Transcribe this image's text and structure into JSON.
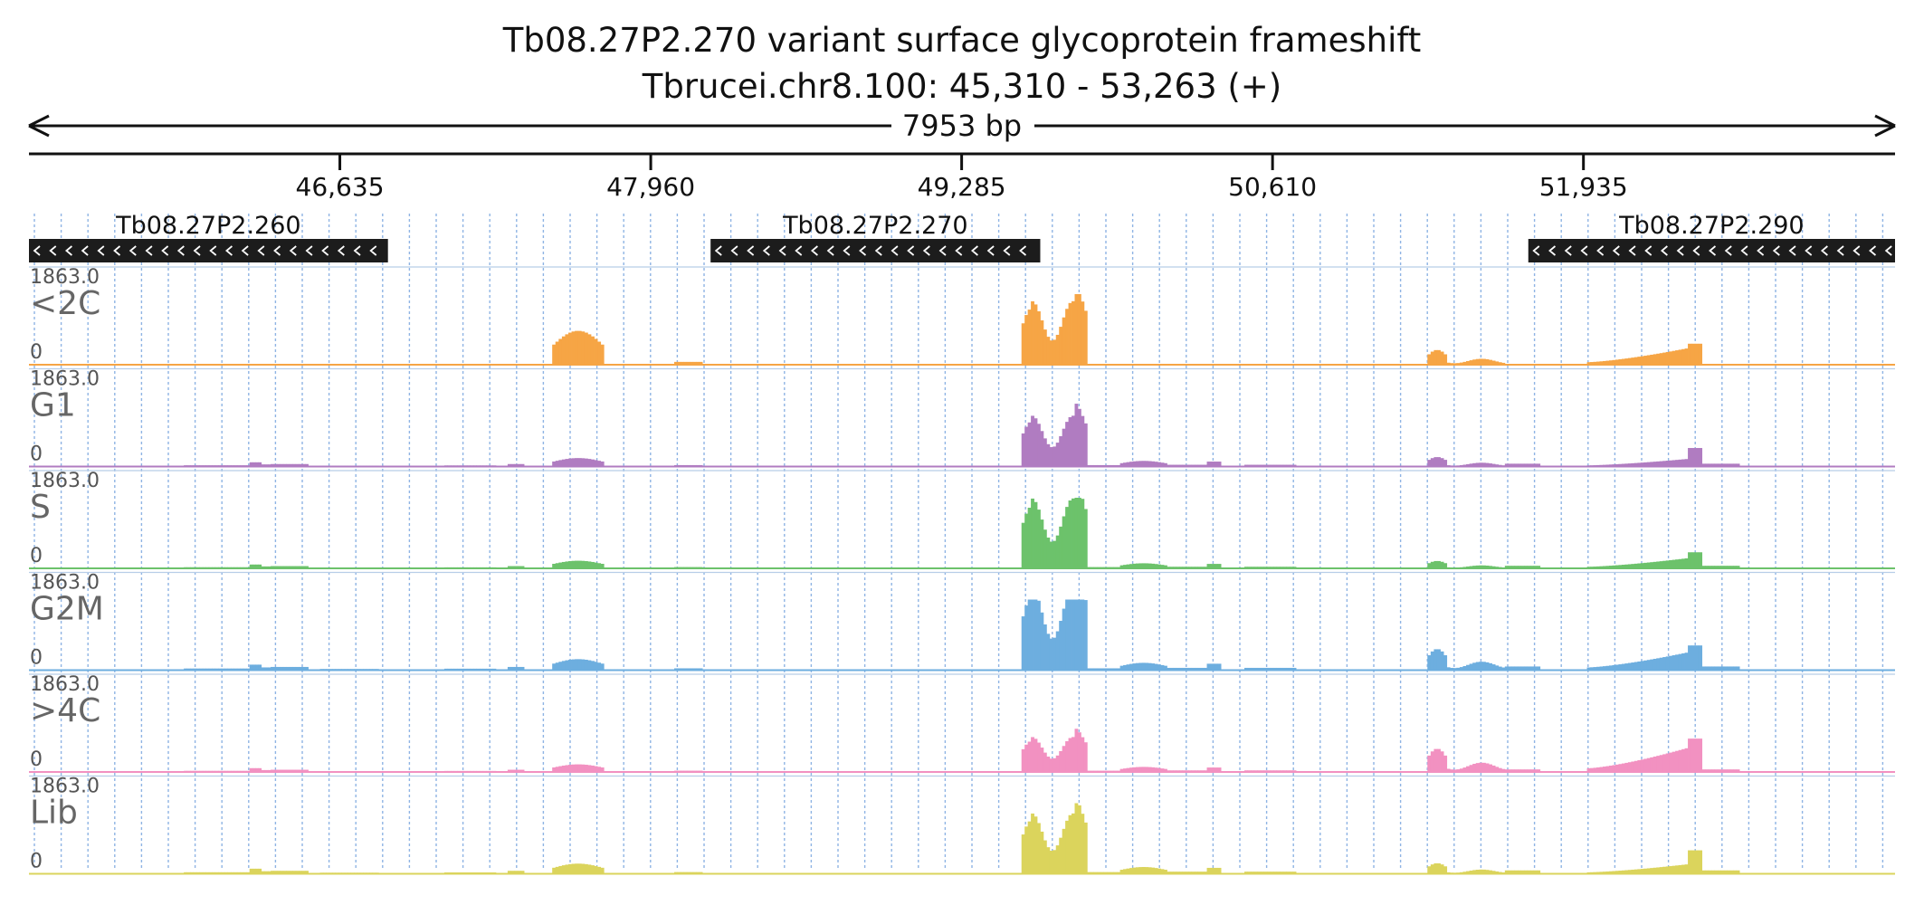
{
  "header": {
    "title": "Tb08.27P2.270  variant surface glycoprotein  frameshift",
    "locus": "Tbrucei.chr8.100: 45,310 - 53,263 (+)",
    "span_label": "7953 bp"
  },
  "chart_data": {
    "type": "area",
    "region": {
      "chrom": "Tbrucei.chr8.100",
      "start": 45310,
      "end": 53263,
      "strand": "+"
    },
    "x_ticks": [
      {
        "pos": 46635,
        "label": "46,635"
      },
      {
        "pos": 47960,
        "label": "47,960"
      },
      {
        "pos": 49285,
        "label": "49,285"
      },
      {
        "pos": 50610,
        "label": "50,610"
      },
      {
        "pos": 51935,
        "label": "51,935"
      }
    ],
    "genes": [
      {
        "name": "Tb08.27P2.260",
        "start": 45310,
        "end": 46840,
        "strand": "-"
      },
      {
        "name": "Tb08.27P2.270",
        "start": 48215,
        "end": 49620,
        "strand": "-"
      },
      {
        "name": "Tb08.27P2.290",
        "start": 51700,
        "end": 53263,
        "strand": "-"
      }
    ],
    "track_scale": {
      "max_label": "1863.0",
      "min_label": "0",
      "max": 1863.0
    },
    "segments": [
      {
        "start": 45310,
        "end": 45520,
        "w": 0.4
      },
      {
        "start": 45520,
        "end": 45750,
        "w": 0.2
      },
      {
        "start": 45800,
        "end": 45970,
        "w": 0.7
      },
      {
        "start": 45970,
        "end": 46250,
        "w": 1.8
      },
      {
        "start": 46250,
        "end": 46300,
        "w": 6
      },
      {
        "start": 46300,
        "end": 46300,
        "w": 0
      },
      {
        "start": 46300,
        "end": 46370,
        "w": 3
      },
      {
        "start": 46340,
        "end": 46500,
        "w": 3.5
      },
      {
        "start": 46550,
        "end": 46800,
        "w": 1.3
      },
      {
        "start": 46360,
        "end": 46380,
        "w": 0
      },
      {
        "start": 46290,
        "end": 46320,
        "w": 0
      },
      {
        "start": 46580,
        "end": 46600,
        "w": 0
      },
      {
        "start": 46650,
        "end": 46700,
        "w": 0
      },
      {
        "start": 46750,
        "end": 46800,
        "w": 0
      },
      {
        "start": 46800,
        "end": 46900,
        "w": 0
      },
      {
        "start": 46900,
        "end": 47000,
        "w": 0
      },
      {
        "start": 47000,
        "end": 47000,
        "w": 0
      },
      {
        "start": 47010,
        "end": 47050,
        "w": 0
      },
      {
        "start": 45980,
        "end": 46000,
        "w": 0
      },
      {
        "start": 46100,
        "end": 46120,
        "w": 0
      },
      {
        "start": 46200,
        "end": 46210,
        "w": 0
      },
      {
        "start": 46220,
        "end": 46240,
        "w": 0
      },
      {
        "start": 47080,
        "end": 47300,
        "w": 1.6
      },
      {
        "start": 47350,
        "end": 47420,
        "w": 3.5
      },
      {
        "start": 47540,
        "end": 47760,
        "w": 12,
        "shape": "hump"
      },
      {
        "start": 47760,
        "end": 47860,
        "w": 1
      },
      {
        "start": 48060,
        "end": 48180,
        "w": 2
      },
      {
        "start": 48180,
        "end": 48700,
        "w": 0.3
      },
      {
        "start": 48900,
        "end": 49100,
        "w": 0.2
      },
      {
        "start": 49540,
        "end": 49820,
        "w": 100,
        "shape": "exon"
      },
      {
        "start": 49820,
        "end": 49960,
        "w": 2
      },
      {
        "start": 49960,
        "end": 50160,
        "w": 8,
        "shape": "hump"
      },
      {
        "start": 50160,
        "end": 50330,
        "w": 2.5
      },
      {
        "start": 50330,
        "end": 50390,
        "w": 7
      },
      {
        "start": 50490,
        "end": 50710,
        "w": 2.5
      },
      {
        "start": 50780,
        "end": 50990,
        "w": 1
      },
      {
        "start": 51270,
        "end": 51600,
        "w": 30,
        "shape": "bumpy"
      },
      {
        "start": 51600,
        "end": 51750,
        "w": 4
      },
      {
        "start": 51950,
        "end": 52380,
        "w": 18,
        "shape": "rise"
      },
      {
        "start": 52380,
        "end": 52440,
        "w": 35
      },
      {
        "start": 52440,
        "end": 52600,
        "w": 4
      }
    ],
    "tracks": [
      {
        "label": "<2C",
        "color": "#f6a545",
        "gain": {
          "default": 0.0,
          "47540": 4.0,
          "48060": 2.0,
          "49540": 1.0,
          "51270": 0.7,
          "51950": 1.3,
          "52380": 0.85
        }
      },
      {
        "label": "G1",
        "color": "#b07cc1",
        "gain": {
          "default": 1.0,
          "49540": 0.8,
          "51270": 0.45,
          "51950": 0.6,
          "52380": 0.75
        }
      },
      {
        "label": "S",
        "color": "#6cc26b",
        "gain": {
          "default": 0.9,
          "49540": 1.1,
          "51270": 0.35,
          "51950": 0.8,
          "52380": 0.65
        }
      },
      {
        "label": "G2M",
        "color": "#6daedf",
        "gain": {
          "default": 1.3,
          "49540": 1.3,
          "51270": 1.0,
          "51950": 1.4,
          "52380": 1.0
        }
      },
      {
        "label": ">4C",
        "color": "#f291c1",
        "gain": {
          "default": 0.9,
          "49540": 0.55,
          "51270": 1.1,
          "51950": 1.9,
          "52380": 1.35
        }
      },
      {
        "label": "Lib",
        "color": "#dbd45c",
        "gain": {
          "default": 1.2,
          "49540": 0.95,
          "51270": 0.5,
          "51950": 0.75,
          "52380": 0.95
        }
      }
    ]
  }
}
